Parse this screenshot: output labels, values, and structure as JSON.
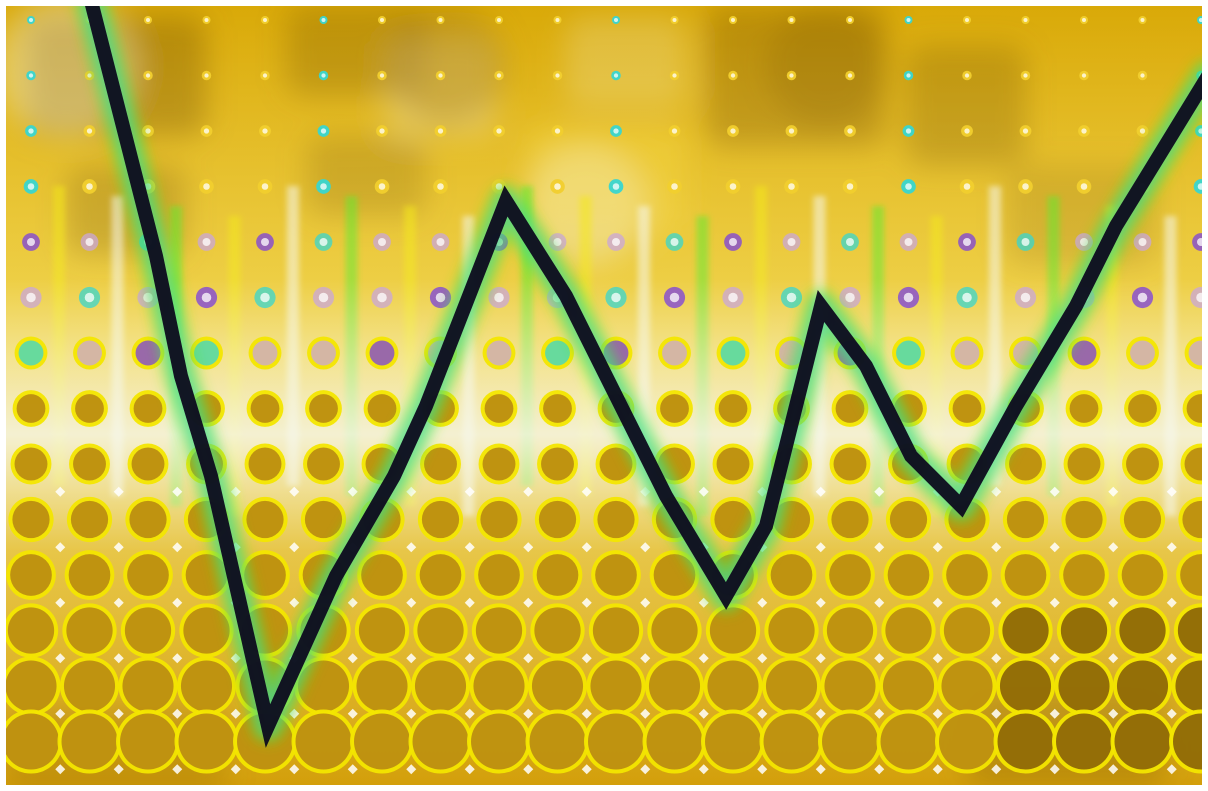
{
  "artwork": {
    "kind": "abstract halftone composition",
    "palette": {
      "background_gold": "#d9a908",
      "background_light": "#f1cf2e",
      "dark_gold": "#8a6208",
      "circle_gold": "#b98a12",
      "rim_yellow": "#f3e600",
      "lime_glow": "#4ee81a",
      "cyan_glow": "#38d6d0",
      "violet": "#7b3fe0",
      "zigzag_line": "#0d0b1e",
      "white_haze": "#f6f8ef",
      "frame": "#ffffff"
    },
    "motif_icons": [
      "halftone-dot-grid",
      "zigzag-line",
      "glow-streaks"
    ]
  }
}
